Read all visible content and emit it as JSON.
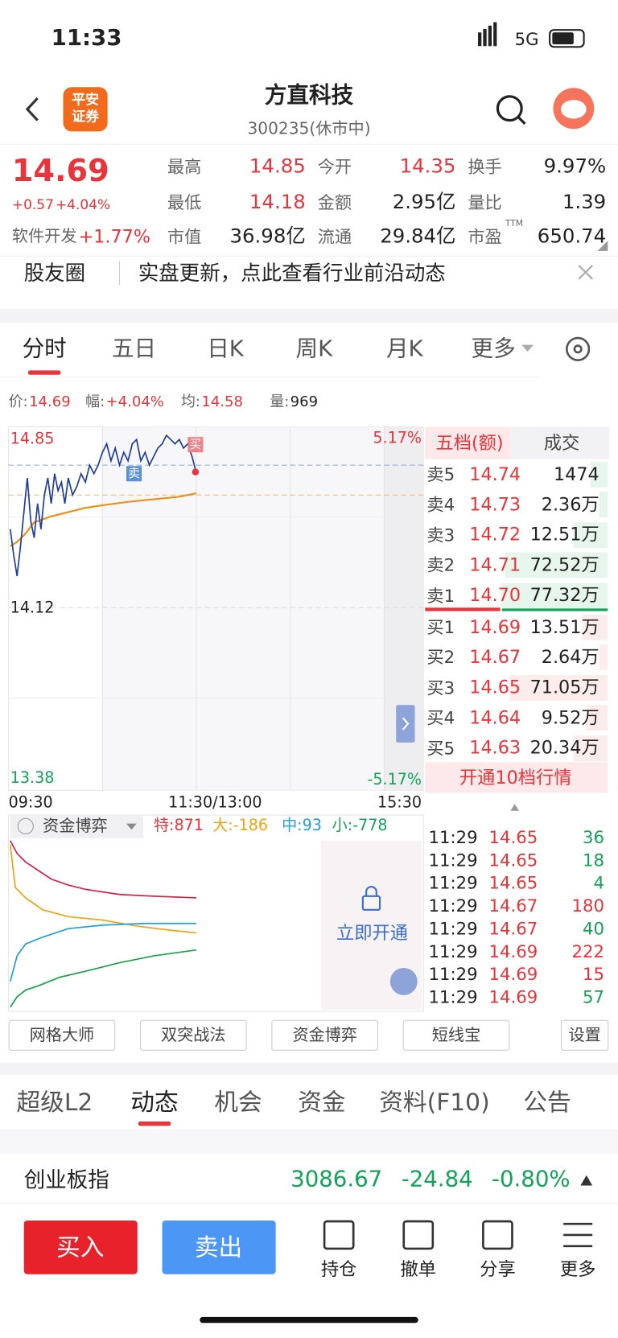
{
  "status": {
    "time": "11:33",
    "network": "5G"
  },
  "header": {
    "logo": [
      "平安",
      "证券"
    ],
    "title": "方直科技",
    "subtitle": "300235(休市中)"
  },
  "quote": {
    "price": "14.69",
    "change": "+0.57",
    "change_pct": "+4.04%",
    "sector": "软件开发",
    "sector_pct": "+1.77%",
    "stats": [
      {
        "label": "最高",
        "value": "14.85"
      },
      {
        "label": "今开",
        "value": "14.35"
      },
      {
        "label": "换手",
        "value": "9.97%"
      },
      {
        "label": "最低",
        "value": "14.18"
      },
      {
        "label": "金额",
        "value": "2.95亿"
      },
      {
        "label": "量比",
        "value": "1.39"
      },
      {
        "label": "市值",
        "value": "36.98亿"
      },
      {
        "label": "流通",
        "value": "29.84亿"
      },
      {
        "label": "市盈",
        "sup": "TTM",
        "value": "650.74"
      }
    ]
  },
  "notice": {
    "label": "股友圈",
    "text": "实盘更新，点此查看行业前沿动态"
  },
  "chart_tabs": [
    "分时",
    "五日",
    "日K",
    "周K",
    "月K",
    "更多"
  ],
  "info": [
    {
      "label": "价:",
      "value": "14.69"
    },
    {
      "label": "幅:",
      "value": "+4.04%"
    },
    {
      "label": "均:",
      "value": "14.58"
    },
    {
      "label": "量:",
      "value": "969"
    }
  ],
  "chart": {
    "price_labels": [
      "14.85",
      "14.12",
      "13.38"
    ],
    "pct_labels": [
      "5.17%",
      "-5.17%"
    ],
    "time_labels": [
      "09:30",
      "11:30/13:00",
      "15:30"
    ],
    "markers": [
      "买",
      "卖"
    ]
  },
  "order_book": {
    "tabs": [
      "五档(额)",
      "成交"
    ],
    "rows": [
      [
        "卖5",
        "14.74",
        "1474"
      ],
      [
        "卖4",
        "14.73",
        "2.36万"
      ],
      [
        "卖3",
        "14.72",
        "12.51万"
      ],
      [
        "卖2",
        "14.71",
        "72.52万"
      ],
      [
        "卖1",
        "14.70",
        "77.32万"
      ],
      [
        "买1",
        "14.69",
        "13.51万"
      ],
      [
        "买2",
        "14.67",
        "2.64万"
      ],
      [
        "买3",
        "14.65",
        "71.05万"
      ],
      [
        "买4",
        "14.64",
        "9.52万"
      ],
      [
        "买5",
        "14.63",
        "20.34万"
      ]
    ],
    "upgrade": "开通10档行情"
  },
  "trades": [
    [
      "11:29",
      "14.65",
      "36"
    ],
    [
      "11:29",
      "14.65",
      "18"
    ],
    [
      "11:29",
      "14.65",
      "4"
    ],
    [
      "11:29",
      "14.67",
      "180"
    ],
    [
      "11:29",
      "14.67",
      "40"
    ],
    [
      "11:29",
      "14.69",
      "222"
    ],
    [
      "11:29",
      "14.69",
      "15"
    ],
    [
      "11:29",
      "14.69",
      "57"
    ]
  ],
  "fund": {
    "title": "资金博弈",
    "flows": [
      "特:871",
      "大:-186",
      "中:93",
      "小:-778"
    ],
    "unlock": "立即开通"
  },
  "tools": [
    "网格大师",
    "双突战法",
    "资金博弈",
    "短线宝",
    "设置"
  ],
  "bottom_tabs": [
    "超级L2",
    "动态",
    "机会",
    "资金",
    "资料(F10)",
    "公告"
  ],
  "index": {
    "name": "创业板指",
    "value": "3086.67",
    "change": "-24.84",
    "change_pct": "-0.80%"
  },
  "actions": {
    "buy": "买入",
    "sell": "卖出",
    "items": [
      "持仓",
      "撤单",
      "分享",
      "更多"
    ]
  }
}
